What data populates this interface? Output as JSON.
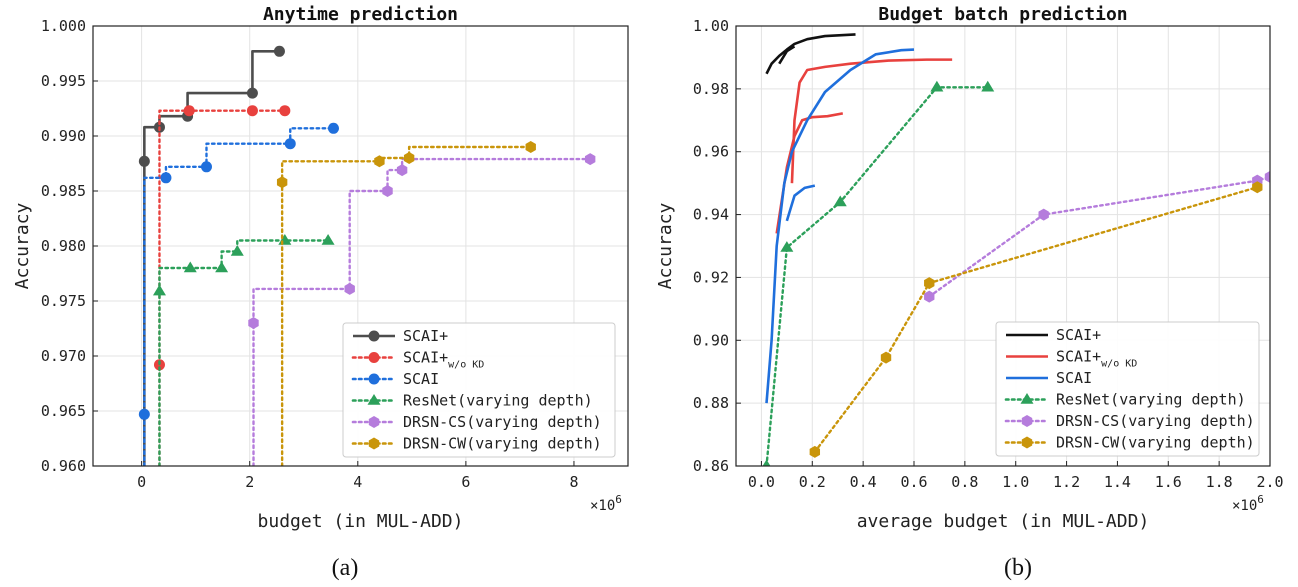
{
  "chart_data": [
    {
      "type": "line",
      "panel_label": "(a)",
      "title": "Anytime prediction",
      "xlabel": "budget (in MUL-ADD)",
      "ylabel": "Accuracy",
      "x_multiplier": "×10",
      "x_multiplier_exp": "6",
      "xlim": [
        -0.9,
        9.0
      ],
      "ylim": [
        0.96,
        1.0
      ],
      "xticks": [
        0,
        2,
        4,
        6,
        8
      ],
      "xtick_labels": [
        "0",
        "2",
        "4",
        "6",
        "8"
      ],
      "yticks": [
        0.96,
        0.965,
        0.97,
        0.975,
        0.98,
        0.985,
        0.99,
        0.995,
        1.0
      ],
      "ytick_labels": [
        "0.960",
        "0.965",
        "0.970",
        "0.975",
        "0.980",
        "0.985",
        "0.990",
        "0.995",
        "1.000"
      ],
      "grid": true,
      "legend_position": "lower-right",
      "step": true,
      "series": [
        {
          "name": "SCAI+",
          "name_sub": "",
          "color": "#4d4d4d",
          "dash": "solid",
          "marker": "circle",
          "x": [
            0.05,
            0.33,
            0.85,
            2.05,
            2.55
          ],
          "y": [
            0.9877,
            0.9908,
            0.9918,
            0.9939,
            0.9977
          ]
        },
        {
          "name": "SCAI+",
          "name_sub": "w/o KD",
          "color": "#e8413e",
          "dash": "dotted",
          "marker": "circle",
          "x": [
            0.33,
            0.88,
            2.05,
            2.65
          ],
          "y": [
            0.9692,
            0.9923,
            0.9923,
            0.9923
          ]
        },
        {
          "name": "SCAI",
          "name_sub": "",
          "color": "#1f6fdc",
          "dash": "dotted",
          "marker": "circle",
          "x": [
            0.05,
            0.45,
            1.2,
            2.75,
            3.55
          ],
          "y": [
            0.9647,
            0.9862,
            0.9872,
            0.9893,
            0.9907
          ]
        },
        {
          "name": "ResNet(varying depth)",
          "name_sub": "",
          "color": "#2ca05a",
          "dash": "dotted",
          "marker": "triangle",
          "x": [
            0.33,
            0.9,
            1.48,
            1.77,
            2.65,
            3.45
          ],
          "y": [
            0.9759,
            0.978,
            0.978,
            0.9795,
            0.9805,
            0.9805
          ]
        },
        {
          "name": "DRSN-CS(varying depth)",
          "name_sub": "",
          "color": "#b57cdc",
          "dash": "dotted",
          "marker": "hexagon",
          "x": [
            2.07,
            3.85,
            4.55,
            4.82,
            8.3
          ],
          "y": [
            0.973,
            0.9761,
            0.985,
            0.9869,
            0.9879
          ]
        },
        {
          "name": "DRSN-CW(varying depth)",
          "name_sub": "",
          "color": "#c9950a",
          "dash": "dotted",
          "marker": "hexagon",
          "x": [
            2.6,
            4.4,
            4.95,
            7.2
          ],
          "y": [
            0.9858,
            0.9877,
            0.988,
            0.989
          ]
        }
      ]
    },
    {
      "type": "line",
      "panel_label": "(b)",
      "title": "Budget batch prediction",
      "xlabel": "average budget (in MUL-ADD)",
      "ylabel": "Accuracy",
      "x_multiplier": "×10",
      "x_multiplier_exp": "6",
      "xlim": [
        -0.1,
        2.0
      ],
      "ylim": [
        0.86,
        1.0
      ],
      "xticks": [
        0.0,
        0.2,
        0.4,
        0.6,
        0.8,
        1.0,
        1.2,
        1.4,
        1.6,
        1.8,
        2.0
      ],
      "xtick_labels": [
        "0.0",
        "0.2",
        "0.4",
        "0.6",
        "0.8",
        "1.0",
        "1.2",
        "1.4",
        "1.6",
        "1.8",
        "2.0"
      ],
      "yticks": [
        0.86,
        0.88,
        0.9,
        0.92,
        0.94,
        0.96,
        0.98,
        1.0
      ],
      "ytick_labels": [
        "0.86",
        "0.88",
        "0.90",
        "0.92",
        "0.94",
        "0.96",
        "0.98",
        "1.00"
      ],
      "grid": true,
      "legend_position": "lower-right",
      "step": false,
      "series": [
        {
          "name": "SCAI+",
          "name_sub": "",
          "color": "#111111",
          "dash": "solid",
          "marker": "none",
          "x": [
            0.02,
            0.04,
            0.07,
            0.1,
            0.13,
            0.18,
            0.25,
            0.37
          ],
          "y": [
            0.9848,
            0.988,
            0.9905,
            0.9925,
            0.9943,
            0.9958,
            0.9968,
            0.9973
          ]
        },
        {
          "name": "",
          "name_sub": "",
          "color": "#111111",
          "dash": "solid",
          "marker": "none",
          "legend": false,
          "x": [
            0.07,
            0.1,
            0.13
          ],
          "y": [
            0.988,
            0.992,
            0.9935
          ]
        },
        {
          "name": "SCAI+",
          "name_sub": "w/o KD",
          "color": "#e8413e",
          "dash": "solid",
          "marker": "none",
          "x": [
            0.12,
            0.13,
            0.15,
            0.18,
            0.25,
            0.35,
            0.5,
            0.65,
            0.75
          ],
          "y": [
            0.95,
            0.97,
            0.982,
            0.986,
            0.987,
            0.988,
            0.989,
            0.9893,
            0.9893
          ]
        },
        {
          "name": "",
          "name_sub": "w/o KD",
          "color": "#e8413e",
          "dash": "solid",
          "marker": "none",
          "legend": false,
          "x": [
            0.06,
            0.1,
            0.13,
            0.16,
            0.2,
            0.26,
            0.32
          ],
          "y": [
            0.934,
            0.955,
            0.965,
            0.97,
            0.971,
            0.9713,
            0.9722
          ]
        },
        {
          "name": "SCAI",
          "name_sub": "",
          "color": "#1f6fdc",
          "dash": "solid",
          "marker": "none",
          "x": [
            0.02,
            0.04,
            0.06,
            0.09,
            0.12,
            0.18,
            0.25,
            0.35,
            0.45,
            0.55,
            0.6
          ],
          "y": [
            0.88,
            0.9,
            0.93,
            0.95,
            0.96,
            0.97,
            0.979,
            0.986,
            0.991,
            0.9923,
            0.9925
          ]
        },
        {
          "name": "",
          "name_sub": "",
          "color": "#1f6fdc",
          "dash": "solid",
          "marker": "none",
          "legend": false,
          "x": [
            0.1,
            0.13,
            0.17,
            0.21
          ],
          "y": [
            0.938,
            0.946,
            0.9485,
            0.9492
          ]
        },
        {
          "name": "ResNet(varying depth)",
          "name_sub": "",
          "color": "#2ca05a",
          "dash": "dotted",
          "marker": "triangle",
          "x": [
            0.02,
            0.1,
            0.31,
            0.69,
            0.89
          ],
          "y": [
            0.86,
            0.9295,
            0.944,
            0.9805,
            0.9805
          ]
        },
        {
          "name": "DRSN-CS(varying depth)",
          "name_sub": "",
          "color": "#b57cdc",
          "dash": "dotted",
          "marker": "hexagon",
          "x": [
            0.66,
            1.11,
            1.95,
            2.0
          ],
          "y": [
            0.9139,
            0.94,
            0.9508,
            0.952
          ]
        },
        {
          "name": "DRSN-CW(varying depth)",
          "name_sub": "",
          "color": "#c9950a",
          "dash": "dotted",
          "marker": "hexagon",
          "x": [
            0.21,
            0.49,
            0.66,
            1.95
          ],
          "y": [
            0.8645,
            0.8945,
            0.9182,
            0.9487
          ]
        }
      ]
    }
  ]
}
